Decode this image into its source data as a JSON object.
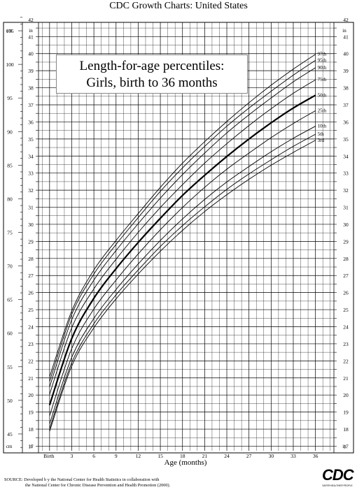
{
  "header": {
    "title": "CDC Growth Charts: United States"
  },
  "chart_data": {
    "type": "line",
    "title": "Length-for-age percentiles:",
    "subtitle": "Girls, birth to 36 months",
    "xlabel": "Age (months)",
    "x_ticks": [
      "Birth",
      "3",
      "6",
      "9",
      "12",
      "15",
      "18",
      "21",
      "24",
      "27",
      "30",
      "33",
      "36"
    ],
    "x_tick_values": [
      0,
      3,
      6,
      9,
      12,
      15,
      18,
      21,
      24,
      27,
      30,
      33,
      36
    ],
    "xlim": [
      -1.5,
      38.5
    ],
    "ylim_cm": [
      42.5,
      107.5
    ],
    "left_unit": "cm",
    "left_inch_unit": "in",
    "right_unit": "in",
    "cm_ticks": [
      45,
      50,
      55,
      60,
      65,
      70,
      75,
      80,
      85,
      90,
      95,
      100,
      105
    ],
    "in_ticks": [
      17,
      18,
      19,
      20,
      21,
      22,
      23,
      24,
      25,
      26,
      27,
      28,
      29,
      30,
      31,
      32,
      33,
      34,
      35,
      36,
      37,
      38,
      39,
      40,
      41,
      42
    ],
    "grid": true,
    "x": [
      0,
      3,
      6,
      9,
      12,
      15,
      18,
      21,
      24,
      27,
      30,
      33,
      36
    ],
    "series": [
      {
        "name": "97th",
        "values": [
          53.5,
          63.3,
          69.4,
          73.8,
          77.8,
          81.7,
          85.3,
          88.5,
          91.5,
          94.3,
          96.9,
          99.3,
          101.5
        ]
      },
      {
        "name": "95th",
        "values": [
          52.8,
          62.8,
          68.8,
          73.2,
          77.2,
          81.1,
          84.6,
          87.8,
          90.8,
          93.5,
          96.0,
          98.4,
          100.6
        ]
      },
      {
        "name": "90th",
        "values": [
          52.0,
          62.0,
          67.9,
          72.3,
          76.3,
          80.1,
          83.6,
          86.8,
          89.8,
          92.5,
          95.0,
          97.4,
          99.5
        ]
      },
      {
        "name": "75th",
        "values": [
          50.9,
          60.8,
          66.6,
          71.0,
          75.0,
          78.7,
          82.1,
          85.3,
          88.2,
          90.9,
          93.4,
          95.7,
          97.7
        ]
      },
      {
        "name": "50th",
        "values": [
          49.3,
          59.2,
          65.2,
          69.6,
          73.5,
          77.1,
          80.5,
          83.5,
          86.3,
          88.9,
          91.3,
          93.5,
          95.4
        ]
      },
      {
        "name": "25th",
        "values": [
          47.7,
          57.7,
          63.6,
          67.9,
          71.8,
          75.4,
          78.7,
          81.7,
          84.4,
          86.8,
          89.1,
          91.2,
          93.1
        ]
      },
      {
        "name": "10th",
        "values": [
          46.5,
          56.4,
          62.2,
          66.5,
          70.3,
          73.8,
          77.0,
          79.9,
          82.5,
          84.8,
          87.0,
          89.0,
          90.8
        ]
      },
      {
        "name": "5th",
        "values": [
          45.8,
          55.6,
          61.4,
          65.7,
          69.4,
          72.9,
          76.0,
          78.8,
          81.4,
          83.7,
          85.8,
          87.8,
          89.6
        ]
      },
      {
        "name": "3rd",
        "values": [
          45.4,
          55.1,
          60.8,
          65.1,
          68.8,
          72.2,
          75.3,
          78.1,
          80.6,
          82.9,
          85.0,
          86.9,
          88.7
        ]
      }
    ]
  },
  "footer": {
    "source_line1": "SOURCE: Developed b y the National Center for Health Statistics in collaboration with",
    "source_line2": "the National Center for Chronic Disease Prevention and Health Promotion (2000).",
    "logo_text": "CDC",
    "logo_subtext": "SAFER·HEALTHIER·PEOPLE"
  }
}
